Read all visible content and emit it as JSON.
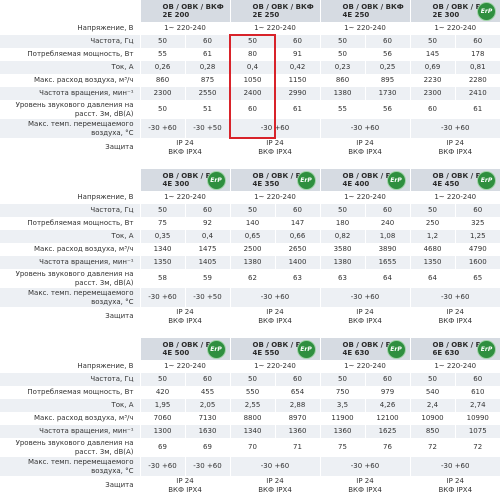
{
  "tables": [
    {
      "headers": [
        {
          "series": "ОВ / ОВК / ВКФ",
          "model": "2Е 200"
        },
        {
          "series": "ОВ / ОВК / ВКФ",
          "model": "2Е 250"
        },
        {
          "series": "ОВ / ОВК / ВКФ",
          "model": "4Е 250"
        },
        {
          "series": "ОВ / ОВК / ВКФ",
          "model": "2Е 300",
          "badge": "ErP"
        }
      ],
      "rows": [
        {
          "label": "Напряжение, В",
          "cells": [
            "1~ 220-240",
            "1~ 220-240",
            "1~ 220-240",
            "1~ 220-240"
          ]
        },
        {
          "label": "Частота, Гц",
          "cells": [
            "50",
            "60",
            "50",
            "60",
            "50",
            "60",
            "50",
            "60"
          ]
        },
        {
          "label": "Потребляемая мощность, Вт",
          "cells": [
            "55",
            "61",
            "80",
            "91",
            "50",
            "56",
            "145",
            "178"
          ]
        },
        {
          "label": "Ток, А",
          "cells": [
            "0,26",
            "0,28",
            "0,4",
            "0,42",
            "0,23",
            "0,25",
            "0,69",
            "0,81"
          ]
        },
        {
          "label": "Макс. расход воздуха, м³/ч",
          "cells": [
            "860",
            "875",
            "1050",
            "1150",
            "860",
            "895",
            "2230",
            "2280"
          ]
        },
        {
          "label": "Частота вращения, мин⁻¹",
          "cells": [
            "2300",
            "2550",
            "2400",
            "2990",
            "1380",
            "1730",
            "2300",
            "2410"
          ]
        },
        {
          "label": "Уровень звукового давления на расст. 3м, dB(A)",
          "cells": [
            "50",
            "51",
            "60",
            "61",
            "55",
            "56",
            "60",
            "61"
          ]
        },
        {
          "label": "Макс. темп. перемещаемого воздуха, °C",
          "cells": [
            "-30 +60",
            "-30 +50",
            "-30 +60",
            "-30 +60",
            "-30 +60"
          ]
        },
        {
          "label": "Защита",
          "cells": [
            "IP 24\nВКФ IPX4",
            "IP 24\nВКФ IPX4",
            "IP 24\nВКФ IPX4",
            "IP 24\nВКФ IPX4"
          ]
        }
      ]
    },
    {
      "headers": [
        {
          "series": "ОВ / ОВК / ВКФ",
          "model": "4Е 300",
          "badge": "ErP"
        },
        {
          "series": "ОВ / ОВК / ВКФ",
          "model": "4Е 350",
          "badge": "ErP"
        },
        {
          "series": "ОВ / ОВК / ВКФ",
          "model": "4Е 400",
          "badge": "ErP"
        },
        {
          "series": "ОВ / ОВК / ВКФ",
          "model": "4Е 450",
          "badge": "ErP"
        }
      ],
      "rows": [
        {
          "label": "Напряжение, В",
          "cells": [
            "1~ 220-240",
            "1~ 220-240",
            "1~ 220-240",
            "1~ 220-240"
          ]
        },
        {
          "label": "Частота, Гц",
          "cells": [
            "50",
            "60",
            "50",
            "60",
            "50",
            "60",
            "50",
            "60"
          ]
        },
        {
          "label": "Потребляемая мощность, Вт",
          "cells": [
            "75",
            "92",
            "140",
            "147",
            "180",
            "240",
            "250",
            "325"
          ]
        },
        {
          "label": "Ток, А",
          "cells": [
            "0,35",
            "0,4",
            "0,65",
            "0,66",
            "0,82",
            "1,08",
            "1,2",
            "1,25"
          ]
        },
        {
          "label": "Макс. расход воздуха, м³/ч",
          "cells": [
            "1340",
            "1475",
            "2500",
            "2650",
            "3580",
            "3890",
            "4680",
            "4790"
          ]
        },
        {
          "label": "Частота вращения, мин⁻¹",
          "cells": [
            "1350",
            "1405",
            "1380",
            "1400",
            "1380",
            "1655",
            "1350",
            "1600"
          ]
        },
        {
          "label": "Уровень звукового давления на расст. 3м, dB(A)",
          "cells": [
            "58",
            "59",
            "62",
            "63",
            "63",
            "64",
            "64",
            "65"
          ]
        },
        {
          "label": "Макс. темп. перемещаемого воздуха, °C",
          "cells": [
            "-30 +60",
            "-30 +50",
            "-30 +60",
            "-30 +60",
            "-30 +60"
          ]
        },
        {
          "label": "Защита",
          "cells": [
            "IP 24\nВКФ IPX4",
            "IP 24\nВКФ IPX4",
            "IP 24\nВКФ IPX4",
            "IP 24\nВКФ IPX4"
          ]
        }
      ]
    },
    {
      "headers": [
        {
          "series": "ОВ / ОВК / ВКФ",
          "model": "4Е 500",
          "badge": "ErP"
        },
        {
          "series": "ОВ / ОВК / ВКФ",
          "model": "4Е 550",
          "badge": "ErP"
        },
        {
          "series": "ОВ / ОВК / ВКФ",
          "model": "4Е 630",
          "badge": "ErP"
        },
        {
          "series": "ОВ / ОВК / ВКФ",
          "model": "6Е 630",
          "badge": "ErP"
        }
      ],
      "rows": [
        {
          "label": "Напряжение, В",
          "cells": [
            "1~ 220-240",
            "1~ 220-240",
            "1~ 220-240",
            "1~ 220-240"
          ]
        },
        {
          "label": "Частота, Гц",
          "cells": [
            "50",
            "60",
            "50",
            "60",
            "50",
            "60",
            "50",
            "60"
          ]
        },
        {
          "label": "Потребляемая мощность, Вт",
          "cells": [
            "420",
            "455",
            "550",
            "654",
            "750",
            "979",
            "540",
            "610"
          ]
        },
        {
          "label": "Ток, А",
          "cells": [
            "1,95",
            "2,05",
            "2,55",
            "2,88",
            "3,5",
            "4,26",
            "2,4",
            "2,74"
          ]
        },
        {
          "label": "Макс. расход воздуха, м³/ч",
          "cells": [
            "7060",
            "7130",
            "8800",
            "8970",
            "11900",
            "12100",
            "10900",
            "10990"
          ]
        },
        {
          "label": "Частота вращения, мин⁻¹",
          "cells": [
            "1300",
            "1630",
            "1340",
            "1360",
            "1360",
            "1625",
            "850",
            "1075"
          ]
        },
        {
          "label": "Уровень звукового давления на расст. 3м, dB(A)",
          "cells": [
            "69",
            "69",
            "70",
            "71",
            "75",
            "76",
            "72",
            "72"
          ]
        },
        {
          "label": "Макс. темп. перемещаемого воздуха, °C",
          "cells": [
            "-30 +60",
            "-30 +60",
            "-30 +60",
            "-30 +60",
            "-30 +60"
          ]
        },
        {
          "label": "Защита",
          "cells": [
            "IP 24\nВКФ IPX4",
            "IP 24\nВКФ IPX4",
            "IP 24\nВКФ IPX4",
            "IP 24\nВКФ IPX4"
          ]
        }
      ]
    }
  ]
}
